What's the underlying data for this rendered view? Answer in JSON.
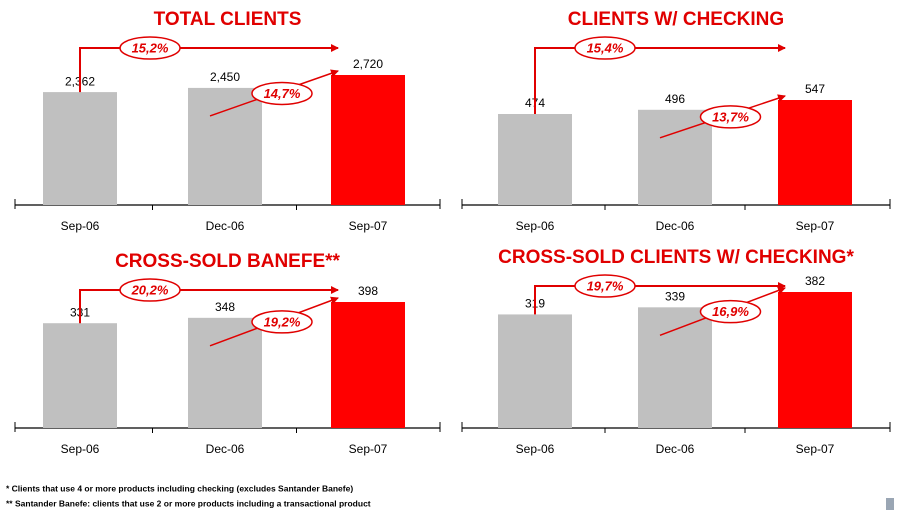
{
  "chart_data": [
    {
      "type": "bar",
      "title": "TOTAL CLIENTS",
      "categories": [
        "Sep-06",
        "Dec-06",
        "Sep-07"
      ],
      "values": [
        2362,
        2450,
        2720
      ],
      "value_labels": [
        "2,362",
        "2,450",
        "2,720"
      ],
      "colors": [
        "#c0c0c0",
        "#c0c0c0",
        "#ff0000"
      ],
      "annotations": [
        "15,2%",
        "14,7%"
      ]
    },
    {
      "type": "bar",
      "title": "CLIENTS W/ CHECKING",
      "categories": [
        "Sep-06",
        "Dec-06",
        "Sep-07"
      ],
      "values": [
        474,
        496,
        547
      ],
      "colors": [
        "#c0c0c0",
        "#c0c0c0",
        "#ff0000"
      ],
      "annotations": [
        "15,4%",
        "13,7%"
      ]
    },
    {
      "type": "bar",
      "title": "CROSS-SOLD BANEFE**",
      "categories": [
        "Sep-06",
        "Dec-06",
        "Sep-07"
      ],
      "values": [
        331,
        348,
        398
      ],
      "colors": [
        "#c0c0c0",
        "#c0c0c0",
        "#ff0000"
      ],
      "annotations": [
        "20,2%",
        "19,2%"
      ]
    },
    {
      "type": "bar",
      "title": "CROSS-SOLD CLIENTS W/ CHECKING*",
      "categories": [
        "Sep-06",
        "Dec-06",
        "Sep-07"
      ],
      "values": [
        319,
        339,
        382
      ],
      "colors": [
        "#c0c0c0",
        "#c0c0c0",
        "#ff0000"
      ],
      "annotations": [
        "19,7%",
        "16,9%"
      ]
    }
  ],
  "footnotes": [
    "* Clients that use 4 or more products including checking (excludes Santander Banefe)",
    "** Santander Banefe: clients that use 2 or more products including a transactional product"
  ]
}
